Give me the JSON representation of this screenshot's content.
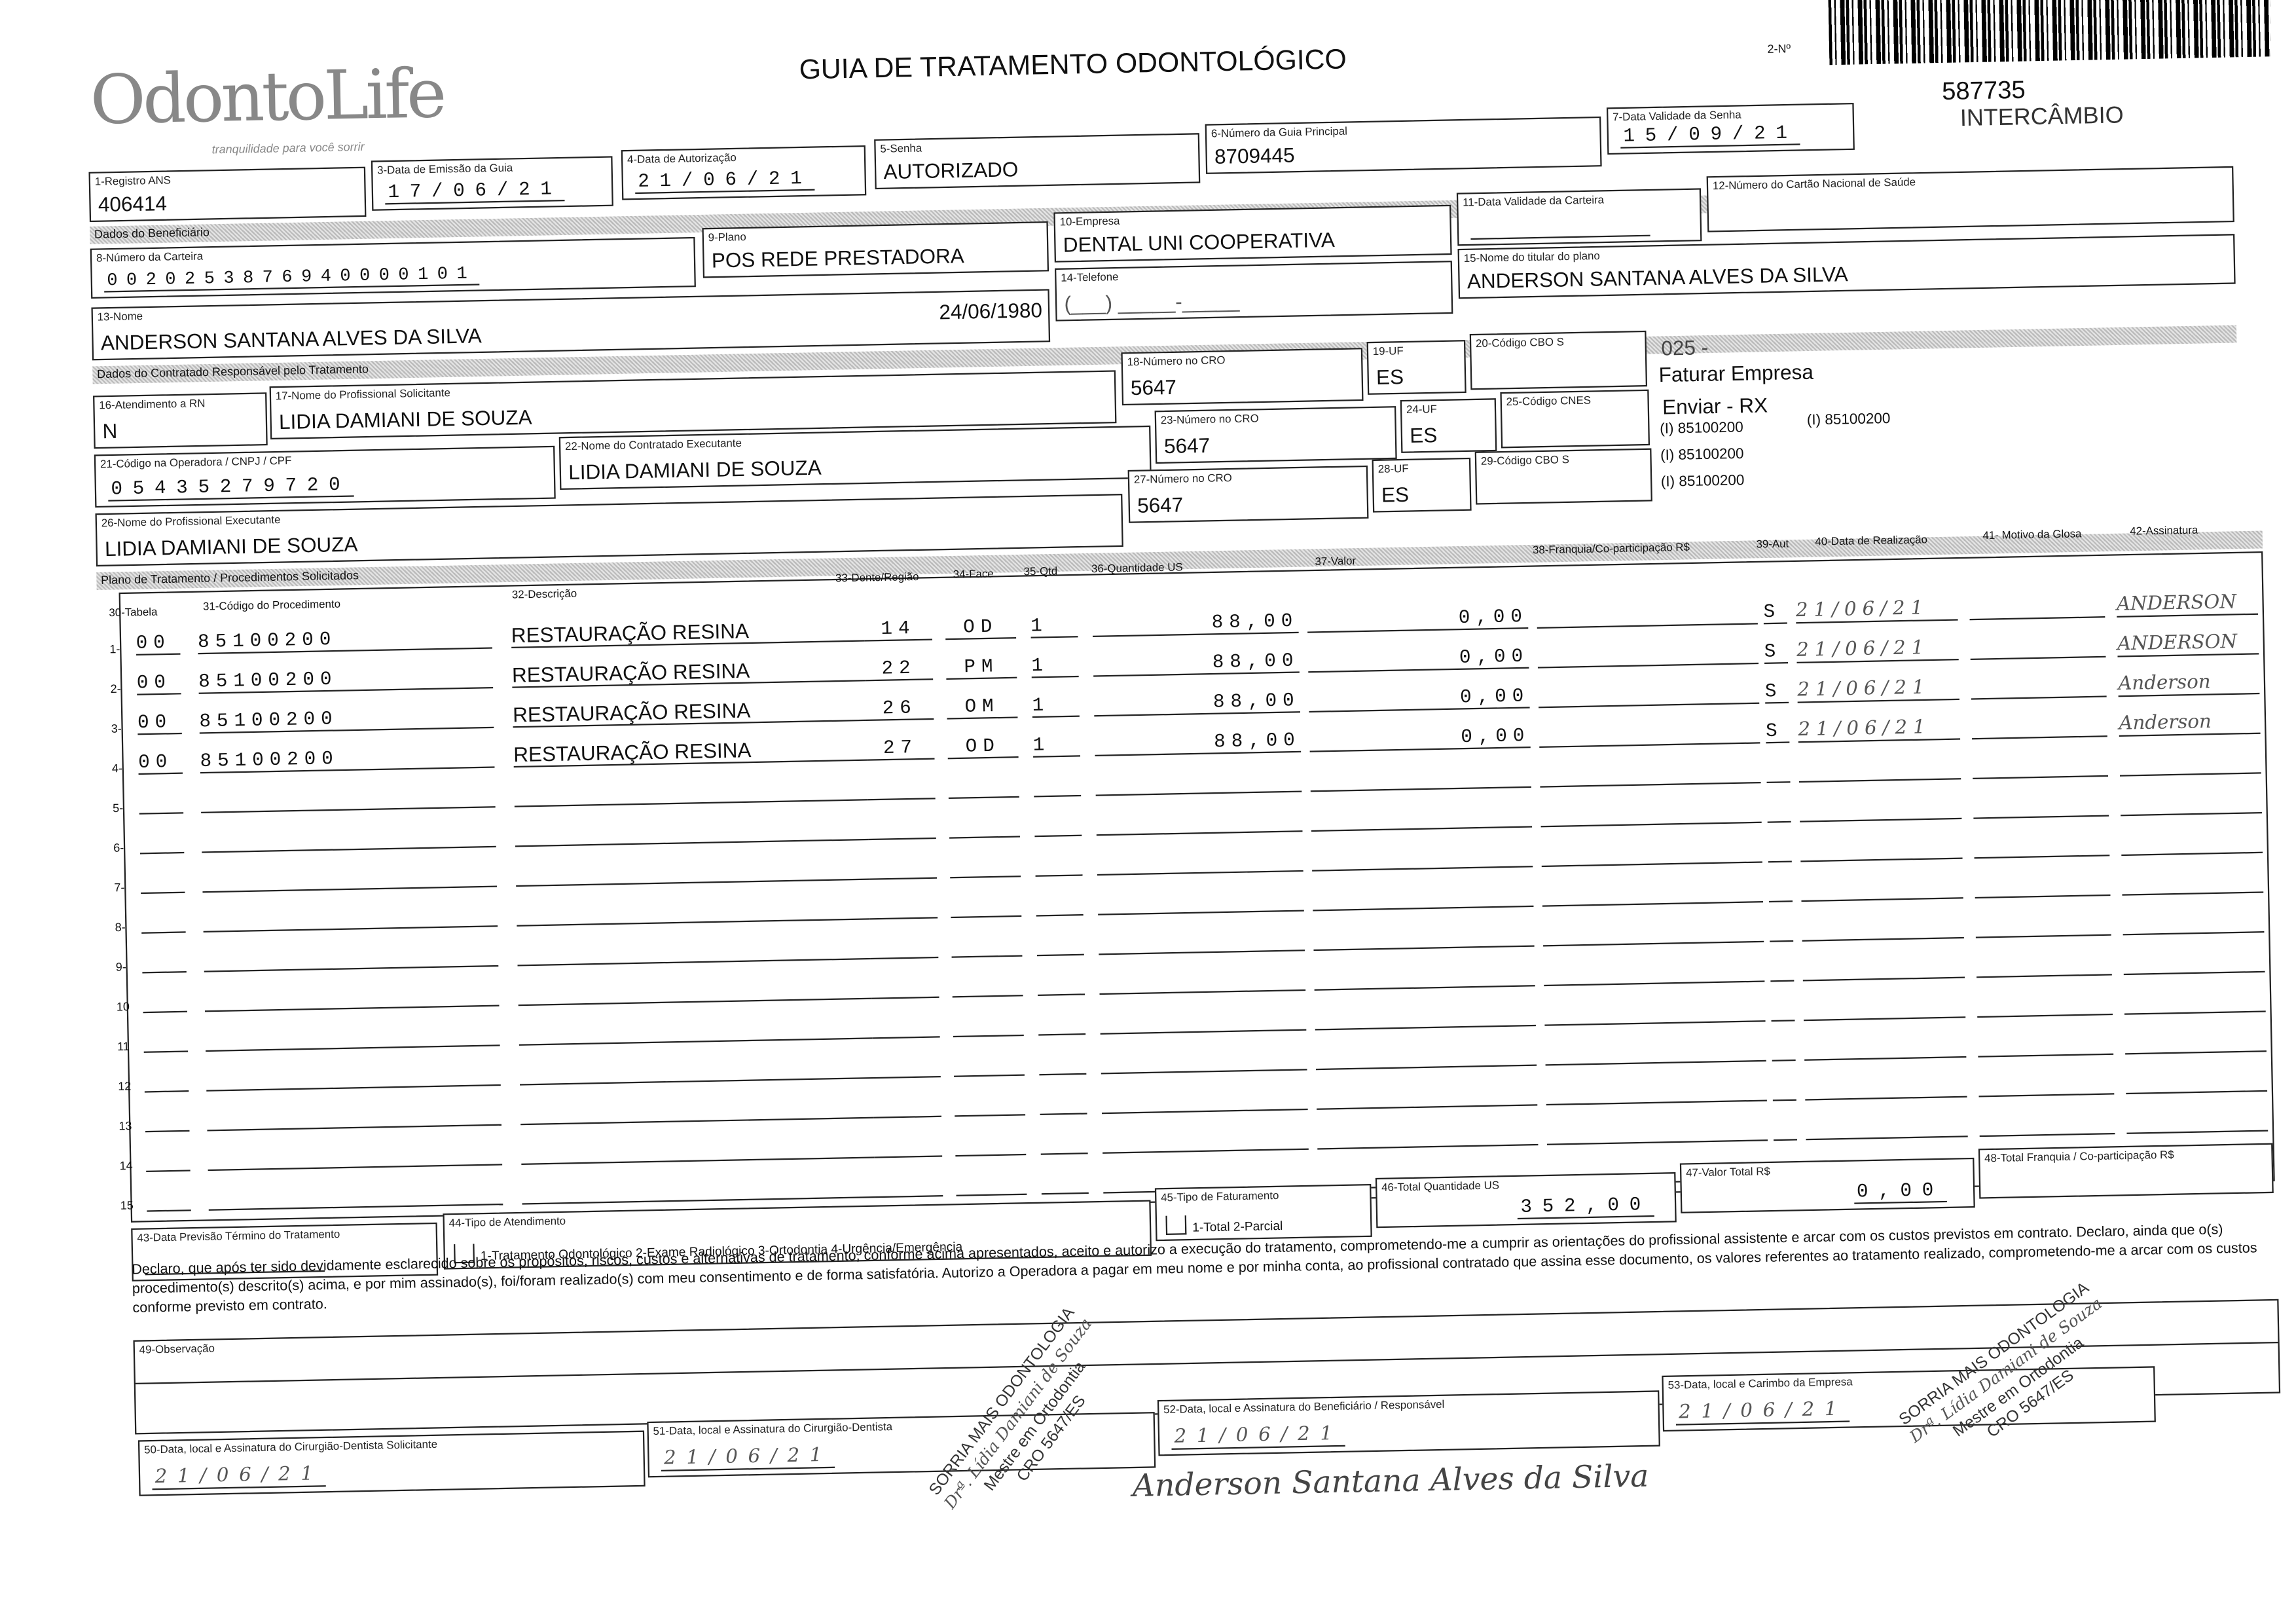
{
  "header": {
    "logo": "OdontoLife",
    "tagline": "tranquilidade para você sorrir",
    "title": "GUIA DE TRATAMENTO ODONTOLÓGICO",
    "guide_no_label": "2-Nº",
    "guide_no": "587735",
    "type": "INTERCÂMBIO"
  },
  "fields": {
    "f1": {
      "label": "1-Registro ANS",
      "value": "406414"
    },
    "f3": {
      "label": "3-Data de Emissão da Guia",
      "value": "17/06/21"
    },
    "f4": {
      "label": "4-Data de Autorização",
      "value": "21/06/21"
    },
    "f5": {
      "label": "5-Senha",
      "value": "AUTORIZADO"
    },
    "f6": {
      "label": "6-Número da Guia Principal",
      "value": "8709445"
    },
    "f7": {
      "label": "7-Data Validade da Senha",
      "value": "15/09/21"
    },
    "f8": {
      "label": "8-Número da Carteira",
      "value": "0020253876940000101"
    },
    "f9": {
      "label": "9-Plano",
      "value": "POS REDE PRESTADORA"
    },
    "f10": {
      "label": "10-Empresa",
      "value": "DENTAL UNI  COOPERATIVA"
    },
    "f11": {
      "label": "11-Data Validade da Carteira",
      "value": "__/__/__"
    },
    "f12": {
      "label": "12-Número do Cartão Nacional de Saúde",
      "value": ""
    },
    "f13": {
      "label": "13-Nome",
      "value": "ANDERSON SANTANA ALVES DA SILVA",
      "birth": "24/06/1980"
    },
    "f14": {
      "label": "14-Telefone",
      "value": "(___) _____-_____"
    },
    "f15": {
      "label": "15-Nome do titular do plano",
      "value": "ANDERSON SANTANA ALVES DA SILVA"
    },
    "f16": {
      "label": "16-Atendimento a RN",
      "value": "N"
    },
    "f17": {
      "label": "17-Nome do Profissional Solicitante",
      "value": "LIDIA DAMIANI DE SOUZA"
    },
    "f18": {
      "label": "18-Número no CRO",
      "value": "5647"
    },
    "f19": {
      "label": "19-UF",
      "value": "ES"
    },
    "f20": {
      "label": "20-Código CBO S",
      "value": ""
    },
    "f21": {
      "label": "21-Código na Operadora / CNPJ / CPF",
      "value": "05435279720"
    },
    "f22": {
      "label": "22-Nome do Contratado Executante",
      "value": "LIDIA DAMIANI DE SOUZA"
    },
    "f23": {
      "label": "23-Número no CRO",
      "value": "5647"
    },
    "f24": {
      "label": "24-UF",
      "value": "ES"
    },
    "f25": {
      "label": "25-Código CNES",
      "value": ""
    },
    "f26": {
      "label": "26-Nome do Profissional Executante",
      "value": "LIDIA DAMIANI DE SOUZA"
    },
    "f27": {
      "label": "27-Número no CRO",
      "value": "5647"
    },
    "f28": {
      "label": "28-UF",
      "value": "ES"
    },
    "f29": {
      "label": "29-Código CBO S",
      "value": ""
    }
  },
  "side_notes": {
    "code": "025 -",
    "billing": "Faturar Empresa",
    "send": "Enviar - RX",
    "proc1": "(I) 85100200",
    "proc2": "(I) 85100200",
    "proc3": "(I) 85100200",
    "proc4": "(I) 85100200"
  },
  "sections": {
    "beneficiary": "Dados do Beneficiário",
    "contractor": "Dados do Contratado Responsável pelo Tratamento",
    "plan": "Plano de Tratamento / Procedimentos Solicitados"
  },
  "columns": {
    "c30": "30-Tabela",
    "c31": "31-Código do Procedimento",
    "c32": "32-Descrição",
    "c33": "33-Dente/Região",
    "c34": "34-Face",
    "c35": "35-Qtd",
    "c36": "36-Quantidade US",
    "c37": "37-Valor",
    "c38": "38-Franquia/Co-participação R$",
    "c39": "39-Aut",
    "c40": "40-Data de Realização",
    "c41": "41- Motivo da Glosa",
    "c42": "42-Assinatura"
  },
  "procedures": [
    {
      "n": "1-",
      "tabela": "00",
      "codigo": "85100200",
      "descricao": "RESTAURAÇÃO RESINA",
      "dente": "14",
      "face": "OD",
      "qtd": "1",
      "us": "88,00",
      "valor": "0,00",
      "franquia": "",
      "aut": "S",
      "data": "21/06/21",
      "glosa": "",
      "assinatura": "ANDERSON"
    },
    {
      "n": "2-",
      "tabela": "00",
      "codigo": "85100200",
      "descricao": "RESTAURAÇÃO RESINA",
      "dente": "22",
      "face": "PM",
      "qtd": "1",
      "us": "88,00",
      "valor": "0,00",
      "franquia": "",
      "aut": "S",
      "data": "21/06/21",
      "glosa": "",
      "assinatura": "ANDERSON"
    },
    {
      "n": "3-",
      "tabela": "00",
      "codigo": "85100200",
      "descricao": "RESTAURAÇÃO RESINA",
      "dente": "26",
      "face": "OM",
      "qtd": "1",
      "us": "88,00",
      "valor": "0,00",
      "franquia": "",
      "aut": "S",
      "data": "21/06/21",
      "glosa": "",
      "assinatura": "Anderson"
    },
    {
      "n": "4-",
      "tabela": "00",
      "codigo": "85100200",
      "descricao": "RESTAURAÇÃO RESINA",
      "dente": "27",
      "face": "OD",
      "qtd": "1",
      "us": "88,00",
      "valor": "0,00",
      "franquia": "",
      "aut": "S",
      "data": "21/06/21",
      "glosa": "",
      "assinatura": "Anderson"
    },
    {
      "n": "5-"
    },
    {
      "n": "6-"
    },
    {
      "n": "7-"
    },
    {
      "n": "8-"
    },
    {
      "n": "9-"
    },
    {
      "n": "10"
    },
    {
      "n": "11"
    },
    {
      "n": "12"
    },
    {
      "n": "13"
    },
    {
      "n": "14"
    },
    {
      "n": "15"
    }
  ],
  "totals": {
    "f43": {
      "label": "43-Data Previsão Término do Tratamento",
      "value": "__/__/__"
    },
    "f44": {
      "label": "44-Tipo de Atendimento",
      "options": "1-Tratamento Odontológico  2-Exame Radiológico  3-Ortodontia  4-Urgência/Emergência"
    },
    "f45": {
      "label": "45-Tipo de Faturamento",
      "options": "1-Total  2-Parcial"
    },
    "f46": {
      "label": "46-Total Quantidade US",
      "value": "352,00"
    },
    "f47": {
      "label": "47-Valor Total R$",
      "value": "0,00"
    },
    "f48": {
      "label": "48-Total Franquia / Co-participação R$",
      "value": ""
    }
  },
  "declaration": "Declaro, que após ter sido devidamente esclarecido sobre os propósitos, riscos, custos e alternativas de tratamento, conforme acima apresentados, aceito e autorizo a execução do tratamento, comprometendo-me a cumprir as orientações do profissional assistente e arcar com os custos previstos em contrato. Declaro, ainda que o(s) procedimento(s) descrito(s) acima, e por mim assinado(s), foi/foram realizado(s) com meu consentimento e de forma satisfatória. Autorizo a Operadora a pagar em meu nome e por minha conta, ao profissional contratado que assina esse documento, os valores referentes ao tratamento realizado, comprometendo-me a arcar com os custos conforme previsto em contrato.",
  "observation": {
    "label": "49-Observação",
    "value": ""
  },
  "signatures": {
    "f50": {
      "label": "50-Data, local e Assinatura do Cirurgião-Dentista Solicitante",
      "date": "21/06/21"
    },
    "f51": {
      "label": "51-Data, local e Assinatura do Cirurgião-Dentista",
      "date": "21/06/21"
    },
    "f52": {
      "label": "52-Data, local e Assinatura do Beneficiário / Responsável",
      "date": "21/06/21"
    },
    "f53": {
      "label": "53-Data, local e Carimbo da Empresa",
      "date": "21/06/21"
    },
    "beneficiary_signature": "Anderson Santana Alves da Silva"
  },
  "stamp": {
    "line1": "SORRIA MAIS ODONTOLOGIA",
    "line2": "Drª. Lídia Damiani de Souza",
    "line3": "Mestre em Ortodontia",
    "line4": "CRO 5647/ES"
  }
}
